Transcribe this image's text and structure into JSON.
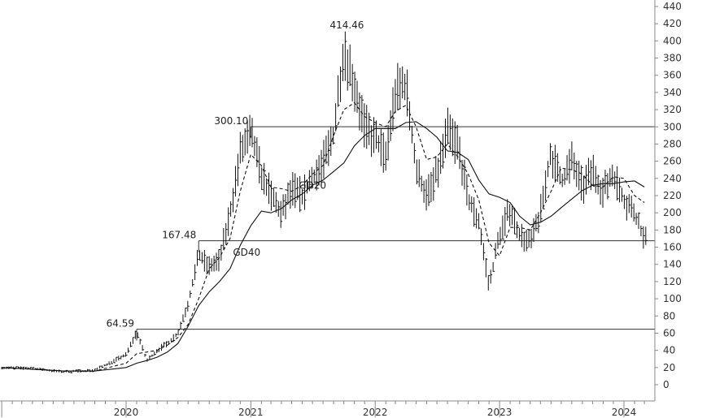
{
  "chart_data": {
    "type": "ohlc",
    "title": "",
    "xlabel": "",
    "ylabel": "",
    "ylim": [
      -10,
      440
    ],
    "y_ticks": [
      0,
      20,
      40,
      60,
      80,
      100,
      120,
      140,
      160,
      180,
      200,
      220,
      240,
      260,
      280,
      300,
      320,
      340,
      360,
      380,
      400,
      420,
      440
    ],
    "x_range": [
      "2019-01-01",
      "2024-05-01"
    ],
    "x_ticks": [
      {
        "label": "2020",
        "date": "2020-01-01"
      },
      {
        "label": "2021",
        "date": "2021-01-01"
      },
      {
        "label": "2022",
        "date": "2022-01-01"
      },
      {
        "label": "2023",
        "date": "2023-01-01"
      },
      {
        "label": "2024",
        "date": "2024-01-01"
      }
    ],
    "grid": false,
    "legend": "none",
    "colors": {
      "bars": "#111111",
      "lines": "#111111",
      "levels": "#333333",
      "axis": "#888888"
    },
    "series": [
      {
        "name": "GD20",
        "style": "dashed",
        "points": [
          [
            "2019-01-01",
            20
          ],
          [
            "2019-04-01",
            18
          ],
          [
            "2019-07-01",
            16
          ],
          [
            "2019-10-01",
            16
          ],
          [
            "2020-01-01",
            25
          ],
          [
            "2020-02-01",
            36
          ],
          [
            "2020-03-01",
            38
          ],
          [
            "2020-04-01",
            40
          ],
          [
            "2020-05-01",
            46
          ],
          [
            "2020-06-01",
            55
          ],
          [
            "2020-07-01",
            70
          ],
          [
            "2020-08-01",
            100
          ],
          [
            "2020-09-01",
            135
          ],
          [
            "2020-10-01",
            148
          ],
          [
            "2020-11-01",
            170
          ],
          [
            "2020-12-01",
            225
          ],
          [
            "2021-01-01",
            268
          ],
          [
            "2021-02-01",
            255
          ],
          [
            "2021-03-01",
            230
          ],
          [
            "2021-04-01",
            228
          ],
          [
            "2021-05-01",
            225
          ],
          [
            "2021-06-01",
            232
          ],
          [
            "2021-07-01",
            245
          ],
          [
            "2021-08-01",
            255
          ],
          [
            "2021-09-01",
            290
          ],
          [
            "2021-10-01",
            320
          ],
          [
            "2021-11-01",
            328
          ],
          [
            "2021-12-01",
            312
          ],
          [
            "2022-01-01",
            305
          ],
          [
            "2022-02-01",
            300
          ],
          [
            "2022-03-01",
            318
          ],
          [
            "2022-04-01",
            325
          ],
          [
            "2022-05-01",
            300
          ],
          [
            "2022-06-01",
            262
          ],
          [
            "2022-07-01",
            265
          ],
          [
            "2022-08-01",
            280
          ],
          [
            "2022-09-01",
            265
          ],
          [
            "2022-10-01",
            245
          ],
          [
            "2022-11-01",
            215
          ],
          [
            "2022-12-01",
            165
          ],
          [
            "2023-01-01",
            150
          ],
          [
            "2023-02-01",
            183
          ],
          [
            "2023-03-01",
            183
          ],
          [
            "2023-04-01",
            180
          ],
          [
            "2023-05-01",
            200
          ],
          [
            "2023-06-01",
            225
          ],
          [
            "2023-07-01",
            252
          ],
          [
            "2023-08-01",
            250
          ],
          [
            "2023-09-01",
            245
          ],
          [
            "2023-10-01",
            232
          ],
          [
            "2023-11-01",
            230
          ],
          [
            "2023-12-01",
            242
          ],
          [
            "2024-01-01",
            240
          ],
          [
            "2024-02-01",
            220
          ],
          [
            "2024-03-01",
            212
          ]
        ]
      },
      {
        "name": "GD40",
        "style": "solid",
        "points": [
          [
            "2019-01-01",
            20
          ],
          [
            "2019-04-01",
            18
          ],
          [
            "2019-07-01",
            16
          ],
          [
            "2019-10-01",
            16
          ],
          [
            "2020-01-01",
            20
          ],
          [
            "2020-02-01",
            25
          ],
          [
            "2020-03-01",
            28
          ],
          [
            "2020-04-01",
            32
          ],
          [
            "2020-05-01",
            38
          ],
          [
            "2020-06-01",
            48
          ],
          [
            "2020-07-01",
            68
          ],
          [
            "2020-08-01",
            92
          ],
          [
            "2020-09-01",
            108
          ],
          [
            "2020-10-01",
            120
          ],
          [
            "2020-11-01",
            135
          ],
          [
            "2020-12-01",
            162
          ],
          [
            "2021-01-01",
            185
          ],
          [
            "2021-02-01",
            202
          ],
          [
            "2021-03-01",
            200
          ],
          [
            "2021-04-01",
            205
          ],
          [
            "2021-05-01",
            215
          ],
          [
            "2021-06-01",
            222
          ],
          [
            "2021-07-01",
            232
          ],
          [
            "2021-08-01",
            238
          ],
          [
            "2021-09-01",
            248
          ],
          [
            "2021-10-01",
            258
          ],
          [
            "2021-11-01",
            278
          ],
          [
            "2021-12-01",
            290
          ],
          [
            "2022-01-01",
            298
          ],
          [
            "2022-02-01",
            298
          ],
          [
            "2022-03-01",
            298
          ],
          [
            "2022-04-01",
            305
          ],
          [
            "2022-05-01",
            306
          ],
          [
            "2022-06-01",
            298
          ],
          [
            "2022-07-01",
            288
          ],
          [
            "2022-08-01",
            272
          ],
          [
            "2022-09-01",
            270
          ],
          [
            "2022-10-01",
            262
          ],
          [
            "2022-11-01",
            238
          ],
          [
            "2022-12-01",
            222
          ],
          [
            "2023-01-01",
            218
          ],
          [
            "2023-02-01",
            212
          ],
          [
            "2023-03-01",
            196
          ],
          [
            "2023-04-01",
            186
          ],
          [
            "2023-05-01",
            189
          ],
          [
            "2023-06-01",
            196
          ],
          [
            "2023-07-01",
            206
          ],
          [
            "2023-08-01",
            216
          ],
          [
            "2023-09-01",
            226
          ],
          [
            "2023-10-01",
            232
          ],
          [
            "2023-11-01",
            234
          ],
          [
            "2023-12-01",
            234
          ],
          [
            "2024-01-01",
            236
          ],
          [
            "2024-02-01",
            237
          ],
          [
            "2024-03-01",
            230
          ]
        ]
      }
    ],
    "price_path": [
      [
        "2019-01-01",
        20
      ],
      [
        "2019-04-01",
        19
      ],
      [
        "2019-07-01",
        15
      ],
      [
        "2019-10-01",
        17
      ],
      [
        "2020-01-01",
        35
      ],
      [
        "2020-02-01",
        62
      ],
      [
        "2020-03-01",
        28
      ],
      [
        "2020-04-01",
        40
      ],
      [
        "2020-05-01",
        48
      ],
      [
        "2020-06-01",
        60
      ],
      [
        "2020-07-01",
        95
      ],
      [
        "2020-08-01",
        150
      ],
      [
        "2020-09-01",
        138
      ],
      [
        "2020-10-01",
        145
      ],
      [
        "2020-11-01",
        200
      ],
      [
        "2020-12-01",
        270
      ],
      [
        "2021-01-01",
        290
      ],
      [
        "2021-02-01",
        245
      ],
      [
        "2021-03-01",
        220
      ],
      [
        "2021-04-01",
        198
      ],
      [
        "2021-05-01",
        228
      ],
      [
        "2021-06-01",
        220
      ],
      [
        "2021-07-01",
        240
      ],
      [
        "2021-08-01",
        258
      ],
      [
        "2021-09-01",
        290
      ],
      [
        "2021-10-01",
        395
      ],
      [
        "2021-11-01",
        350
      ],
      [
        "2021-12-01",
        300
      ],
      [
        "2022-01-01",
        285
      ],
      [
        "2022-02-01",
        265
      ],
      [
        "2022-03-01",
        340
      ],
      [
        "2022-04-01",
        350
      ],
      [
        "2022-05-01",
        250
      ],
      [
        "2022-06-01",
        220
      ],
      [
        "2022-07-01",
        245
      ],
      [
        "2022-08-01",
        295
      ],
      [
        "2022-09-01",
        280
      ],
      [
        "2022-10-01",
        215
      ],
      [
        "2022-11-01",
        190
      ],
      [
        "2022-12-01",
        115
      ],
      [
        "2023-01-01",
        175
      ],
      [
        "2023-02-01",
        205
      ],
      [
        "2023-03-01",
        175
      ],
      [
        "2023-04-01",
        165
      ],
      [
        "2023-05-01",
        200
      ],
      [
        "2023-06-01",
        270
      ],
      [
        "2023-07-01",
        235
      ],
      [
        "2023-08-01",
        260
      ],
      [
        "2023-09-01",
        230
      ],
      [
        "2023-10-01",
        250
      ],
      [
        "2023-11-01",
        225
      ],
      [
        "2023-12-01",
        245
      ],
      [
        "2024-01-01",
        215
      ],
      [
        "2024-02-01",
        200
      ],
      [
        "2024-03-01",
        168
      ]
    ],
    "levels": [
      {
        "value": 300.1,
        "label": "300.10",
        "from": "2021-01-01"
      },
      {
        "value": 167.48,
        "label": "167.48",
        "from": "2020-08-01"
      },
      {
        "value": 64.59,
        "label": "64.59",
        "from": "2020-02-01"
      }
    ],
    "annotations": [
      {
        "text": "414.46",
        "date": "2021-10-10",
        "value": 414.46
      },
      {
        "text": "GD20",
        "date": "2021-07-01",
        "value": 228
      },
      {
        "text": "GD40",
        "date": "2020-12-20",
        "value": 150
      }
    ]
  }
}
